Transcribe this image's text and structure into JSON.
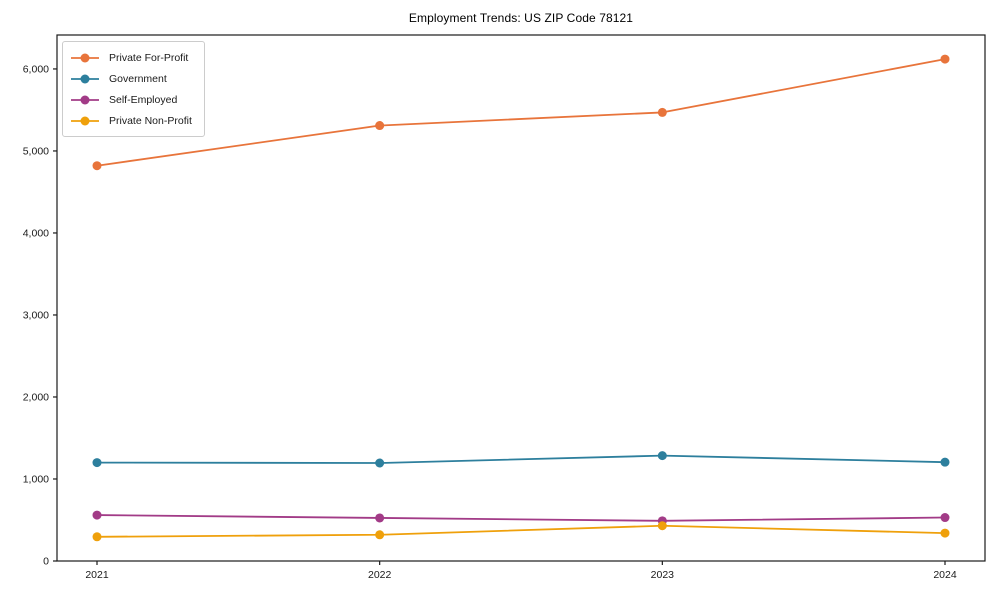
{
  "figure": {
    "background": "#ffffff",
    "axis_color": "#1a1a1a",
    "text_color": "#1a1a1a",
    "legend_border_color": "#cccccc"
  },
  "chart_data": {
    "type": "line",
    "title": "Employment Trends: US ZIP Code 78121",
    "x": [
      2021,
      2022,
      2023,
      2024
    ],
    "xlabel": "",
    "ylabel": "",
    "ylim": [
      0,
      6414
    ],
    "yticks": [
      0,
      1000,
      2000,
      3000,
      4000,
      5000,
      6000
    ],
    "grid": false,
    "legend_position": "upper-left",
    "series": [
      {
        "name": "Private For-Profit",
        "color": "#e8743b",
        "values": [
          4820,
          5310,
          5470,
          6120
        ]
      },
      {
        "name": "Government",
        "color": "#2d7f9d",
        "values": [
          1200,
          1195,
          1285,
          1205
        ]
      },
      {
        "name": "Self-Employed",
        "color": "#a23b87",
        "values": [
          560,
          525,
          490,
          530
        ]
      },
      {
        "name": "Private Non-Profit",
        "color": "#efa00b",
        "values": [
          295,
          320,
          430,
          340
        ]
      }
    ]
  }
}
